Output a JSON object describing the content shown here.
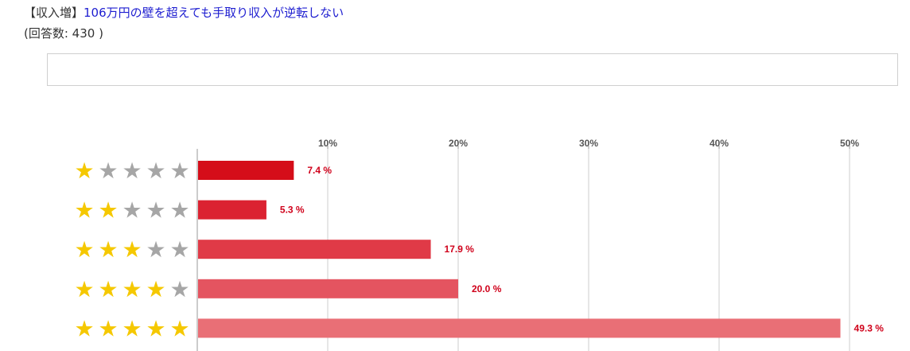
{
  "header": {
    "tag": "【収入増】",
    "title": "106万円の壁を超えても手取り収入が逆転しない",
    "respondents": "(回答数: 430 )"
  },
  "chart_data": {
    "type": "bar",
    "orientation": "horizontal",
    "categories": [
      "★☆☆☆☆",
      "★★☆☆☆",
      "★★★☆☆",
      "★★★★☆",
      "★★★★★"
    ],
    "star_counts": [
      1,
      2,
      3,
      4,
      5
    ],
    "values": [
      7.4,
      5.3,
      17.9,
      20.0,
      49.3
    ],
    "value_labels": [
      "7.4 %",
      "5.3 %",
      "17.9 %",
      "20.0 %",
      "49.3 %"
    ],
    "xticks": [
      10,
      20,
      30,
      40,
      50
    ],
    "xtick_labels": [
      "10%",
      "20%",
      "30%",
      "40%",
      "50%"
    ],
    "xlim": [
      0,
      50
    ],
    "grid": true,
    "colors": {
      "bars": [
        "#d50d19",
        "#db2231",
        "#e03a47",
        "#e45460",
        "#e96f76"
      ],
      "star_filled": "#f5c800",
      "star_empty": "#a6a6a6",
      "value_label": "#d0021b"
    }
  }
}
